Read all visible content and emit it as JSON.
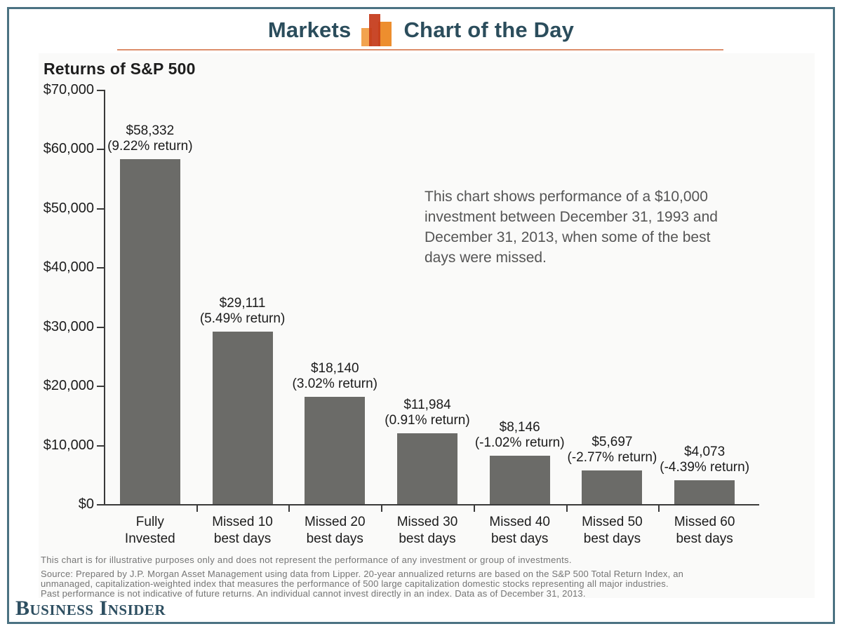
{
  "header": {
    "markets_label": "Markets",
    "chart_of_day_label": "Chart of the Day",
    "icon": "bar-chart-icon",
    "text_color": "#2b4d5c",
    "underline_color": "#dd8e6c",
    "border_color": "#4b7282"
  },
  "chart_data": {
    "type": "bar",
    "title": "Returns of S&P 500",
    "categories": [
      "Fully\nInvested",
      "Missed 10\nbest days",
      "Missed 20\nbest days",
      "Missed 30\nbest days",
      "Missed 40\nbest days",
      "Missed 50\nbest days",
      "Missed 60\nbest days"
    ],
    "values": [
      58332,
      29111,
      18140,
      11984,
      8146,
      5697,
      4073
    ],
    "bar_labels": [
      {
        "amount": "$58,332",
        "return_note": "(9.22% return)"
      },
      {
        "amount": "$29,111",
        "return_note": "(5.49% return)"
      },
      {
        "amount": "$18,140",
        "return_note": "(3.02% return)"
      },
      {
        "amount": "$11,984",
        "return_note": "(0.91% return)"
      },
      {
        "amount": "$8,146",
        "return_note": "(-1.02% return)"
      },
      {
        "amount": "$5,697",
        "return_note": "(-2.77% return)"
      },
      {
        "amount": "$4,073",
        "return_note": "(-4.39% return)"
      }
    ],
    "returns_percent": [
      9.22,
      5.49,
      3.02,
      0.91,
      -1.02,
      -2.77,
      -4.39
    ],
    "y_tick_labels": [
      "$0",
      "$10,000",
      "$20,000",
      "$30,000",
      "$40,000",
      "$50,000",
      "$60,000",
      "$70,000"
    ],
    "ylim": [
      0,
      70000
    ],
    "xlabel": "",
    "ylabel": "",
    "grid": false,
    "legend": false,
    "bar_color": "#6b6b68",
    "axis_color": "#3a3a3a",
    "annotation": "This chart shows performance of a $10,000\ninvestment between December 31, 1993 and\nDecember 31, 2013, when some of the best\ndays were missed."
  },
  "footer": {
    "note": "This chart is for illustrative purposes only and does not represent the performance of any investment or group of investments.",
    "source": "Source: Prepared by J.P. Morgan Asset Management using data from Lipper. 20-year annualized returns are based on the S&P 500 Total Return Index, an\nunmanaged, capitalization-weighted index that measures the performance of 500 large capitalization domestic stocks representing all major industries.\nPast performance is not indicative of future returns. An individual cannot invest directly in an index. Data as of December 31, 2013."
  },
  "logo": {
    "text": "Business Insider"
  }
}
